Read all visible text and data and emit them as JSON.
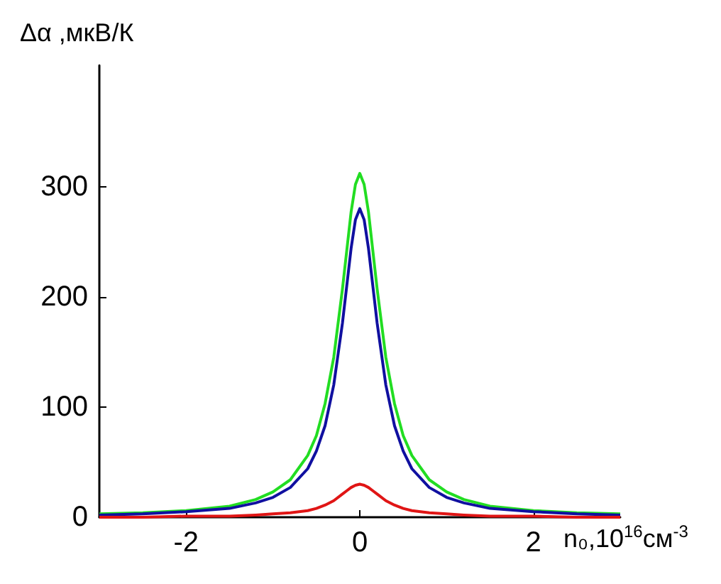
{
  "chart_data": {
    "type": "line",
    "xlabel": "n₀,10$^{16}$см$^{-3}$",
    "ylabel": "Δα ,мкВ/К",
    "x": [
      -3,
      -2.5,
      -2,
      -1.5,
      -1.2,
      -1,
      -0.8,
      -0.6,
      -0.5,
      -0.4,
      -0.3,
      -0.2,
      -0.15,
      -0.1,
      -0.05,
      0,
      0.05,
      0.1,
      0.15,
      0.2,
      0.3,
      0.4,
      0.5,
      0.6,
      0.8,
      1,
      1.2,
      1.5,
      2,
      2.5,
      3
    ],
    "series": [
      {
        "color": "#22dd22",
        "values": [
          3,
          4,
          6,
          10,
          16,
          23,
          34,
          56,
          74,
          103,
          145,
          207,
          242,
          277,
          302,
          312,
          302,
          277,
          242,
          207,
          145,
          103,
          74,
          56,
          34,
          23,
          16,
          10,
          6,
          4,
          3
        ]
      },
      {
        "color": "#1010a0",
        "values": [
          2,
          3,
          5,
          8,
          13,
          18,
          27,
          44,
          60,
          83,
          120,
          176,
          210,
          244,
          270,
          280,
          270,
          244,
          210,
          176,
          120,
          83,
          60,
          44,
          27,
          18,
          13,
          8,
          5,
          3,
          2
        ]
      },
      {
        "color": "#e01515",
        "values": [
          0,
          0,
          1,
          1,
          2,
          3,
          4,
          6,
          8,
          11,
          15,
          21,
          24,
          27,
          29,
          30,
          29,
          27,
          24,
          21,
          15,
          11,
          8,
          6,
          4,
          3,
          2,
          1,
          1,
          0,
          0
        ]
      }
    ],
    "xlim": [
      -3,
      3
    ],
    "xticks": [
      -2,
      0,
      2
    ],
    "ylim": [
      0,
      410
    ],
    "yticks": [
      0,
      100,
      200,
      300
    ],
    "marker": "none",
    "line_style": "solid"
  }
}
